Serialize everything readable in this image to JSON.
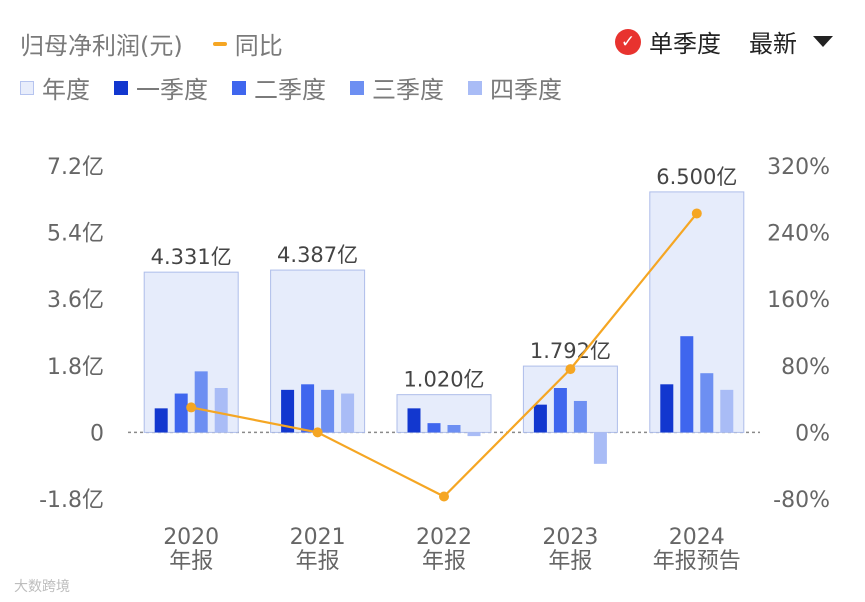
{
  "header": {
    "title": "归母净利润(元)",
    "yoy_label": "同比",
    "single_quarter_label": "单季度",
    "latest_label": "最新"
  },
  "legend": {
    "year": "年度",
    "q1": "一季度",
    "q2": "二季度",
    "q3": "三季度",
    "q4": "四季度"
  },
  "colors": {
    "year_fill": "#e6ecfb",
    "year_stroke": "#aebdea",
    "q1": "#1237cf",
    "q2": "#3f66ee",
    "q3": "#6d8ff2",
    "q4": "#a9bcf6",
    "yoy": "#f5a623",
    "check": "#e8332f"
  },
  "watermark": "大数跨境",
  "chart_data": {
    "type": "bar",
    "categories": [
      "2020",
      "2021",
      "2022",
      "2023",
      "2024"
    ],
    "category_sublabels": [
      "年报",
      "年报",
      "年报",
      "年报",
      "年报预告"
    ],
    "annual_values": [
      4.331,
      4.387,
      1.02,
      1.792,
      6.5
    ],
    "annual_labels": [
      "4.331亿",
      "4.387亿",
      "1.020亿",
      "1.792亿",
      "6.500亿"
    ],
    "series": [
      {
        "name": "一季度",
        "values": [
          0.65,
          1.15,
          0.65,
          0.75,
          1.3
        ]
      },
      {
        "name": "二季度",
        "values": [
          1.05,
          1.3,
          0.25,
          1.2,
          2.6
        ]
      },
      {
        "name": "三季度",
        "values": [
          1.65,
          1.15,
          0.2,
          0.85,
          1.6
        ]
      },
      {
        "name": "四季度",
        "values": [
          1.2,
          1.05,
          -0.1,
          -0.85,
          1.15
        ]
      }
    ],
    "yoy": {
      "name": "同比",
      "values": [
        30,
        0,
        -77,
        76,
        263
      ]
    },
    "y_left": {
      "ticks": [
        -1.8,
        0,
        1.8,
        3.6,
        5.4,
        7.2
      ],
      "tick_labels": [
        "-1.8亿",
        "0",
        "1.8亿",
        "3.6亿",
        "5.4亿",
        "7.2亿"
      ],
      "ylim": [
        -1.8,
        7.2
      ]
    },
    "y_right": {
      "ticks": [
        -80,
        0,
        80,
        160,
        240,
        320
      ],
      "tick_labels": [
        "-80%",
        "0%",
        "80%",
        "160%",
        "240%",
        "320%"
      ],
      "ylim": [
        -80,
        320
      ]
    }
  }
}
